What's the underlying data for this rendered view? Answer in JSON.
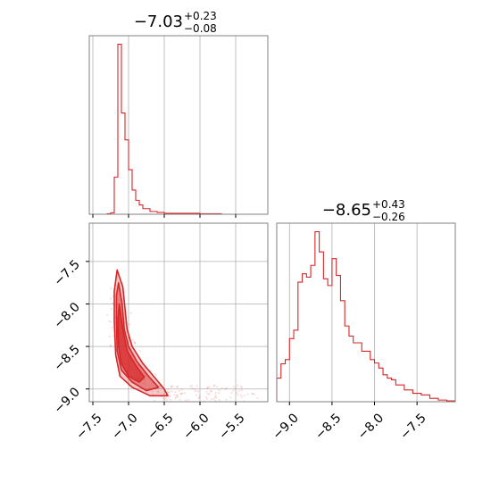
{
  "colors": {
    "series": "#d62728",
    "grid": "#b0b0b0",
    "frame": "#808080"
  },
  "chart_data": [
    {
      "type": "histogram",
      "panel": "top-left",
      "title": {
        "value": "−7.03",
        "upper": "+0.23",
        "lower": "−0.08"
      },
      "xlim": [
        -7.55,
        -5.05
      ],
      "grid": true,
      "x_ticks": [
        -7.5,
        -7.0,
        -6.5,
        -6.0,
        -5.5
      ],
      "x_tick_labels_shown": false,
      "y_tick_labels_shown": false,
      "step": {
        "x": [
          -7.5,
          -7.3,
          -7.25,
          -7.2,
          -7.15,
          -7.1,
          -7.05,
          -7.0,
          -6.95,
          -6.9,
          -6.85,
          -6.8,
          -6.7,
          -6.6,
          -6.5,
          -6.4,
          -6.2,
          -6.0,
          -5.8,
          -5.7,
          -5.5
        ],
        "y": [
          0,
          0.5,
          1.5,
          40,
          183,
          109,
          80,
          48,
          26,
          15,
          10,
          6,
          3,
          2,
          1,
          1,
          1,
          0.5,
          0.5,
          0
        ]
      }
    },
    {
      "type": "scatter-contour",
      "panel": "bottom-left",
      "xlim": [
        -7.55,
        -5.05
      ],
      "ylim": [
        -9.15,
        -7.05
      ],
      "grid": true,
      "x_ticks": [
        -7.5,
        -7.0,
        -6.5,
        -6.0,
        -5.5
      ],
      "x_tick_labels": [
        "−7.5",
        "−7.0",
        "−6.5",
        "−6.0",
        "−5.5"
      ],
      "y_ticks": [
        -7.5,
        -8.0,
        -8.5,
        -9.0
      ],
      "y_tick_labels": [
        "−7.5",
        "−8.0",
        "−8.5",
        "−9.0"
      ],
      "contours": [
        {
          "level": "outer",
          "points": [
            [
              -7.16,
              -7.6
            ],
            [
              -7.08,
              -7.8
            ],
            [
              -7.05,
              -8.05
            ],
            [
              -7.02,
              -8.3
            ],
            [
              -6.95,
              -8.5
            ],
            [
              -6.8,
              -8.7
            ],
            [
              -6.62,
              -8.88
            ],
            [
              -6.5,
              -9.0
            ],
            [
              -6.45,
              -9.08
            ],
            [
              -6.7,
              -9.08
            ],
            [
              -6.95,
              -8.98
            ],
            [
              -7.12,
              -8.85
            ],
            [
              -7.18,
              -8.6
            ],
            [
              -7.2,
              -8.2
            ],
            [
              -7.2,
              -7.85
            ]
          ]
        },
        {
          "level": "middle",
          "points": [
            [
              -7.14,
              -7.75
            ],
            [
              -7.09,
              -8.0
            ],
            [
              -7.06,
              -8.3
            ],
            [
              -7.0,
              -8.5
            ],
            [
              -6.88,
              -8.68
            ],
            [
              -6.72,
              -8.85
            ],
            [
              -6.58,
              -8.98
            ],
            [
              -6.75,
              -9.02
            ],
            [
              -6.95,
              -8.92
            ],
            [
              -7.1,
              -8.78
            ],
            [
              -7.16,
              -8.55
            ],
            [
              -7.17,
              -8.2
            ],
            [
              -7.17,
              -7.9
            ]
          ]
        },
        {
          "level": "inner",
          "points": [
            [
              -7.13,
              -8.0
            ],
            [
              -7.08,
              -8.3
            ],
            [
              -7.02,
              -8.55
            ],
            [
              -6.9,
              -8.72
            ],
            [
              -6.78,
              -8.86
            ],
            [
              -6.85,
              -8.92
            ],
            [
              -7.0,
              -8.85
            ],
            [
              -7.1,
              -8.7
            ],
            [
              -7.14,
              -8.5
            ],
            [
              -7.15,
              -8.2
            ]
          ]
        }
      ]
    },
    {
      "type": "histogram",
      "panel": "bottom-right",
      "title": {
        "value": "−8.65",
        "upper": "+0.43",
        "lower": "−0.26"
      },
      "xlim": [
        -9.15,
        -7.05
      ],
      "grid": true,
      "x_ticks": [
        -9.0,
        -8.5,
        -8.0,
        -7.5
      ],
      "x_tick_labels": [
        "−9.0",
        "−8.5",
        "−8.0",
        "−7.5"
      ],
      "y_tick_labels_shown": false,
      "step": {
        "x": [
          -9.15,
          -9.1,
          -9.05,
          -9.0,
          -8.95,
          -8.9,
          -8.85,
          -8.8,
          -8.75,
          -8.7,
          -8.65,
          -8.6,
          -8.55,
          -8.5,
          -8.45,
          -8.4,
          -8.35,
          -8.3,
          -8.25,
          -8.2,
          -8.15,
          -8.1,
          -8.05,
          -8.0,
          -7.95,
          -7.9,
          -7.85,
          -7.8,
          -7.75,
          -7.7,
          -7.65,
          -7.6,
          -7.55,
          -7.5,
          -7.45,
          -7.4,
          -7.35,
          -7.3,
          -7.25,
          -7.2,
          -7.15,
          -7.1,
          -7.05
        ],
        "y": [
          28,
          45,
          50,
          75,
          85,
          142,
          152,
          148,
          162,
          202,
          178,
          146,
          138,
          170,
          150,
          120,
          90,
          78,
          70,
          70,
          60,
          60,
          50,
          46,
          40,
          32,
          28,
          26,
          20,
          20,
          14,
          14,
          10,
          10,
          8,
          8,
          4,
          4,
          2,
          2,
          1,
          1
        ]
      }
    }
  ]
}
